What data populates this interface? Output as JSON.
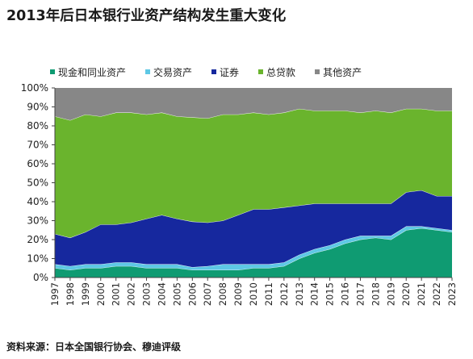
{
  "title": "2013年后日本银行业资产结构发生重大变化",
  "source": "资料来源：日本全国银行协会、穆迪评级",
  "chart_data": {
    "type": "area",
    "stacked": true,
    "categories": [
      "1997",
      "1998",
      "1999",
      "2000",
      "2001",
      "2002",
      "2003",
      "2004",
      "2005",
      "2006",
      "2007",
      "2008",
      "2009",
      "2010",
      "2011",
      "2012",
      "2013",
      "2014",
      "2015",
      "2016",
      "2017",
      "2018",
      "2019",
      "2020",
      "2021",
      "2022",
      "2023"
    ],
    "ylim": [
      0,
      100
    ],
    "yticks": [
      "0%",
      "10%",
      "20%",
      "30%",
      "40%",
      "50%",
      "60%",
      "70%",
      "80%",
      "90%",
      "100%"
    ],
    "legend_position": "top",
    "grid": false,
    "series": [
      {
        "name": "现金和同业资产",
        "color": "#0f9b72",
        "values": [
          5,
          4,
          5,
          5,
          6,
          6,
          5,
          5,
          5,
          4,
          4,
          4,
          4,
          5,
          5,
          6,
          10,
          13,
          15,
          18,
          20,
          21,
          20,
          25,
          26,
          25,
          24
        ]
      },
      {
        "name": "交易资产",
        "color": "#5ec8e5",
        "values": [
          2,
          2,
          2,
          2,
          2,
          2,
          2,
          2,
          2,
          1.5,
          2,
          3,
          3,
          2,
          2,
          2,
          2,
          2,
          2,
          2,
          2,
          1,
          2,
          2,
          1,
          1,
          1
        ]
      },
      {
        "name": "证券",
        "color": "#16289e",
        "values": [
          16,
          15,
          17,
          21,
          20,
          21,
          24,
          26,
          24,
          24,
          23,
          23,
          26,
          29,
          29,
          29,
          26,
          24,
          22,
          19,
          17,
          17,
          17,
          18,
          19,
          17,
          18
        ]
      },
      {
        "name": "总贷款",
        "color": "#6ab42d",
        "values": [
          62,
          62,
          62,
          57,
          59,
          58,
          55,
          54,
          54,
          55,
          55,
          56,
          53,
          51,
          50,
          50,
          51,
          49,
          49,
          49,
          48,
          49,
          48,
          44,
          43,
          45,
          45
        ]
      },
      {
        "name": "其他资产",
        "color": "#878787",
        "values": [
          15,
          17,
          14,
          15,
          13,
          13,
          14,
          13,
          15,
          15.5,
          16,
          14,
          14,
          13,
          14,
          13,
          11,
          12,
          12,
          12,
          13,
          12,
          13,
          11,
          11,
          12,
          12
        ]
      }
    ]
  }
}
